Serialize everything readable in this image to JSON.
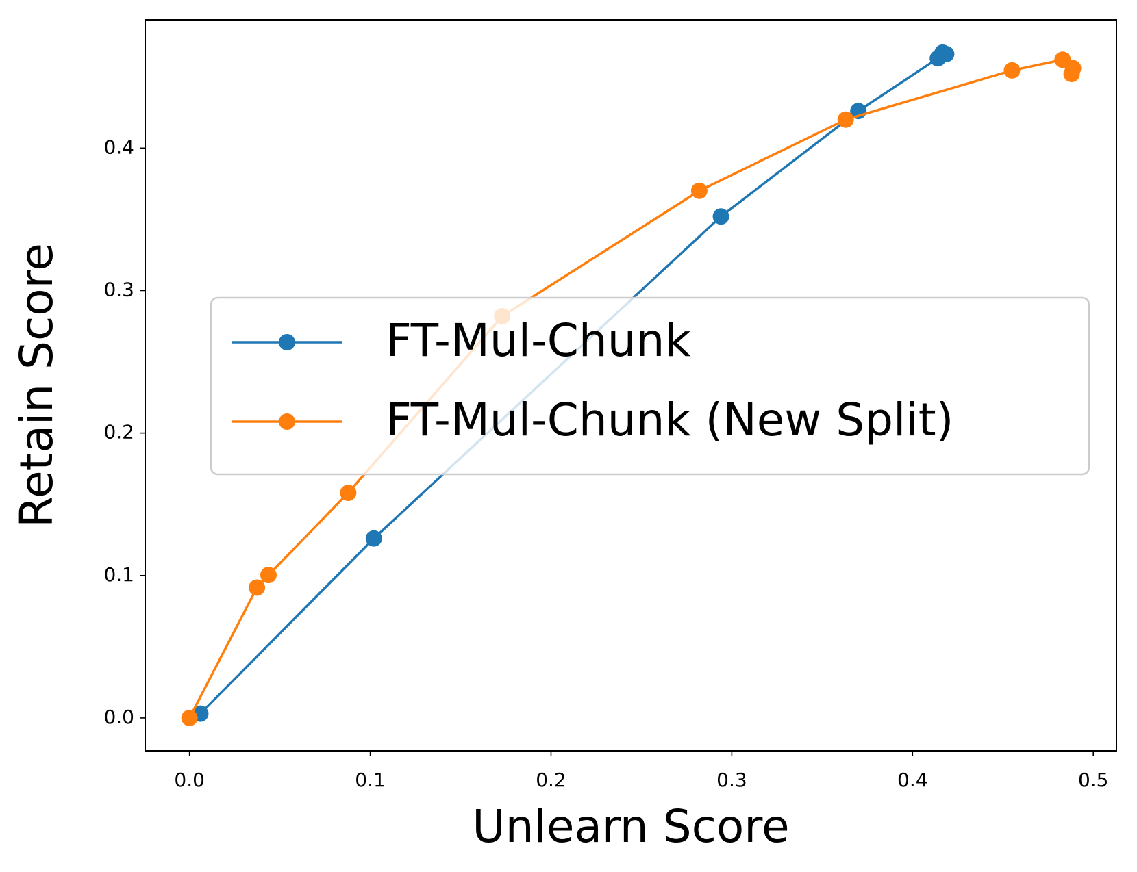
{
  "chart_data": {
    "type": "line",
    "x_label": "Unlearn Score",
    "y_label": "Retain Score",
    "xlim": [
      -0.0245,
      0.5128
    ],
    "ylim": [
      -0.0231,
      0.49
    ],
    "xticks": [
      {
        "value": 0,
        "label": "0.0"
      },
      0.1,
      0.2,
      0.3,
      0.4,
      0.5
    ],
    "yticks": [
      {
        "value": 0,
        "label": "0.0"
      },
      0.1,
      0.2,
      0.3,
      0.4
    ],
    "grid": false,
    "legend": "center",
    "series": [
      {
        "name": "FT-Mul-Chunk",
        "color": "#1f77b4",
        "x": [
          0.006,
          0.102,
          0.294,
          0.37,
          0.414,
          0.4166,
          0.4186
        ],
        "values": [
          0.003,
          0.126,
          0.352,
          0.426,
          0.463,
          0.467,
          0.466
        ]
      },
      {
        "name": "FT-Mul-Chunk (New Split)",
        "color": "#ff7f0e",
        "x": [
          0,
          0.0373,
          0.0437,
          0.0878,
          0.173,
          0.282,
          0.363,
          0.455,
          0.483,
          0.4888,
          0.488
        ],
        "values": [
          0,
          0.0915,
          0.1003,
          0.158,
          0.282,
          0.37,
          0.42,
          0.4545,
          0.462,
          0.456,
          0.452
        ]
      }
    ]
  }
}
